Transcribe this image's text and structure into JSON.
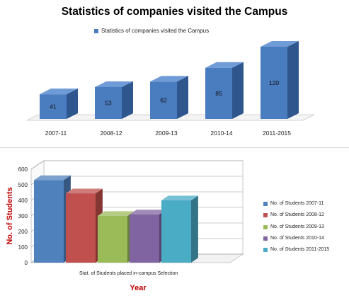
{
  "chart_data": [
    {
      "type": "bar",
      "title": "Statistics of companies visited the Campus",
      "legend": "top-center",
      "categories": [
        "2007-11",
        "2008-12",
        "2009-13",
        "2010-14",
        "2011-2015"
      ],
      "series": [
        {
          "name": "Statistics of companies visited the Campus",
          "values": [
            41,
            53,
            62,
            85,
            120
          ]
        }
      ],
      "data_labels": [
        "41",
        "53",
        "62",
        "85",
        "120"
      ],
      "colors": {
        "front": "#4a7cc0",
        "side": "#2f578e",
        "top": "#6f9bd6"
      },
      "grid": false
    },
    {
      "type": "bar",
      "title": "",
      "xlabel": "Year",
      "ylabel": "No. of Students",
      "ylim": [
        0,
        600
      ],
      "yticks": [
        "0",
        "100",
        "200",
        "300",
        "400",
        "500",
        "600"
      ],
      "categories": [
        "Stat. of Students placed in-campus Selection"
      ],
      "series": [
        {
          "name": "No. of Students 2007-11",
          "values": [
            530
          ],
          "color": "#4f81bd"
        },
        {
          "name": "No. of Students 2008-12",
          "values": [
            445
          ],
          "color": "#c0504d"
        },
        {
          "name": "No. of Students 2009-13",
          "values": [
            300
          ],
          "color": "#9bbb59"
        },
        {
          "name": "No. of Students 2010-14",
          "values": [
            310
          ],
          "color": "#8064a2"
        },
        {
          "name": "No. of Students 2011-2015",
          "values": [
            400
          ],
          "color": "#4bacc6"
        }
      ],
      "legend": "right",
      "grid": true,
      "label_colors": {
        "axis_title": "#c00000"
      }
    }
  ]
}
